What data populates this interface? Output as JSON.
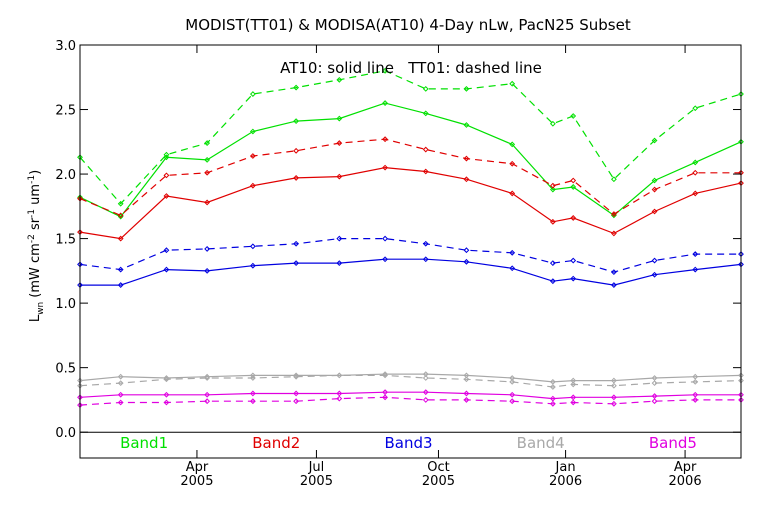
{
  "chart_data": {
    "type": "line",
    "title": "MODIST(TT01) & MODISA(AT10) 4-Day nLw, PacN25 Subset",
    "annotation": "AT10: solid line   TT01: dashed line",
    "ylabel": {
      "main": "L",
      "main_sub": "wn",
      "unit_open": " (mW cm",
      "unit_sup1": "-2",
      "unit_mid": " sr",
      "unit_sup2": "-1",
      "unit_um": " um",
      "unit_sup3": "-1",
      "unit_close": ")"
    },
    "ylim": [
      -0.2,
      3.0
    ],
    "yticks": [
      "0.0",
      "0.5",
      "1.0",
      "1.5",
      "2.0",
      "2.5",
      "3.0"
    ],
    "xlim": [
      0,
      26.0
    ],
    "xticks": [
      {
        "x": 4.6,
        "month": "Apr",
        "year": "2005"
      },
      {
        "x": 9.3,
        "month": "Jul",
        "year": "2005"
      },
      {
        "x": 14.1,
        "month": "Oct",
        "year": "2005"
      },
      {
        "x": 19.1,
        "month": "Jan",
        "year": "2006"
      },
      {
        "x": 23.8,
        "month": "Apr",
        "year": "2006"
      }
    ],
    "legend_placement": "bottom, inside plot",
    "series": [
      {
        "name": "Band1",
        "color": "#00e000",
        "style": "solid",
        "x": [
          0,
          1.6,
          3.4,
          5.0,
          6.8,
          8.5,
          10.2,
          12.0,
          13.6,
          15.2,
          17.0,
          18.6,
          19.4,
          21.0,
          22.6,
          24.2,
          26.0
        ],
        "y": [
          1.82,
          1.67,
          2.13,
          2.11,
          2.33,
          2.41,
          2.43,
          2.55,
          2.47,
          2.38,
          2.23,
          1.88,
          1.9,
          1.68,
          1.95,
          2.09,
          2.25
        ]
      },
      {
        "name": "Band1",
        "color": "#00e000",
        "style": "dashed",
        "x": [
          0,
          1.6,
          3.4,
          5.0,
          6.8,
          8.5,
          10.2,
          12.0,
          13.6,
          15.2,
          17.0,
          18.6,
          19.4,
          21.0,
          22.6,
          24.2,
          26.0
        ],
        "y": [
          2.13,
          1.77,
          2.15,
          2.24,
          2.62,
          2.67,
          2.73,
          2.8,
          2.66,
          2.66,
          2.7,
          2.39,
          2.45,
          1.96,
          2.26,
          2.51,
          2.62
        ]
      },
      {
        "name": "Band2",
        "color": "#e00000",
        "style": "solid",
        "x": [
          0,
          1.6,
          3.4,
          5.0,
          6.8,
          8.5,
          10.2,
          12.0,
          13.6,
          15.2,
          17.0,
          18.6,
          19.4,
          21.0,
          22.6,
          24.2,
          26.0
        ],
        "y": [
          1.55,
          1.5,
          1.83,
          1.78,
          1.91,
          1.97,
          1.98,
          2.05,
          2.02,
          1.96,
          1.85,
          1.63,
          1.66,
          1.54,
          1.71,
          1.85,
          1.93
        ]
      },
      {
        "name": "Band2",
        "color": "#e00000",
        "style": "dashed",
        "x": [
          0,
          1.6,
          3.4,
          5.0,
          6.8,
          8.5,
          10.2,
          12.0,
          13.6,
          15.2,
          17.0,
          18.6,
          19.4,
          21.0,
          22.6,
          24.2,
          26.0
        ],
        "y": [
          1.81,
          1.68,
          1.99,
          2.01,
          2.14,
          2.18,
          2.24,
          2.27,
          2.19,
          2.12,
          2.08,
          1.91,
          1.95,
          1.69,
          1.88,
          2.01,
          2.01
        ]
      },
      {
        "name": "Band3",
        "color": "#0000e0",
        "style": "solid",
        "x": [
          0,
          1.6,
          3.4,
          5.0,
          6.8,
          8.5,
          10.2,
          12.0,
          13.6,
          15.2,
          17.0,
          18.6,
          19.4,
          21.0,
          22.6,
          24.2,
          26.0
        ],
        "y": [
          1.14,
          1.14,
          1.26,
          1.25,
          1.29,
          1.31,
          1.31,
          1.34,
          1.34,
          1.32,
          1.27,
          1.17,
          1.19,
          1.14,
          1.22,
          1.26,
          1.3
        ]
      },
      {
        "name": "Band3",
        "color": "#0000e0",
        "style": "dashed",
        "x": [
          0,
          1.6,
          3.4,
          5.0,
          6.8,
          8.5,
          10.2,
          12.0,
          13.6,
          15.2,
          17.0,
          18.6,
          19.4,
          21.0,
          22.6,
          24.2,
          26.0
        ],
        "y": [
          1.3,
          1.26,
          1.41,
          1.42,
          1.44,
          1.46,
          1.5,
          1.5,
          1.46,
          1.41,
          1.39,
          1.31,
          1.33,
          1.24,
          1.33,
          1.38,
          1.38
        ]
      },
      {
        "name": "Band4",
        "color": "#a8a8a8",
        "style": "solid",
        "x": [
          0,
          1.6,
          3.4,
          5.0,
          6.8,
          8.5,
          10.2,
          12.0,
          13.6,
          15.2,
          17.0,
          18.6,
          19.4,
          21.0,
          22.6,
          24.2,
          26.0
        ],
        "y": [
          0.4,
          0.43,
          0.42,
          0.43,
          0.44,
          0.44,
          0.44,
          0.45,
          0.45,
          0.44,
          0.42,
          0.39,
          0.4,
          0.4,
          0.42,
          0.43,
          0.44
        ]
      },
      {
        "name": "Band4",
        "color": "#a8a8a8",
        "style": "dashed",
        "x": [
          0,
          1.6,
          3.4,
          5.0,
          6.8,
          8.5,
          10.2,
          12.0,
          13.6,
          15.2,
          17.0,
          18.6,
          19.4,
          21.0,
          22.6,
          24.2,
          26.0
        ],
        "y": [
          0.36,
          0.38,
          0.41,
          0.42,
          0.42,
          0.43,
          0.44,
          0.44,
          0.42,
          0.41,
          0.39,
          0.35,
          0.37,
          0.36,
          0.38,
          0.39,
          0.4
        ]
      },
      {
        "name": "Band5",
        "color": "#e000e0",
        "style": "solid",
        "x": [
          0,
          1.6,
          3.4,
          5.0,
          6.8,
          8.5,
          10.2,
          12.0,
          13.6,
          15.2,
          17.0,
          18.6,
          19.4,
          21.0,
          22.6,
          24.2,
          26.0
        ],
        "y": [
          0.27,
          0.29,
          0.29,
          0.29,
          0.3,
          0.3,
          0.3,
          0.31,
          0.31,
          0.3,
          0.29,
          0.26,
          0.27,
          0.27,
          0.28,
          0.29,
          0.29
        ]
      },
      {
        "name": "Band5",
        "color": "#e000e0",
        "style": "dashed",
        "x": [
          0,
          1.6,
          3.4,
          5.0,
          6.8,
          8.5,
          10.2,
          12.0,
          13.6,
          15.2,
          17.0,
          18.6,
          19.4,
          21.0,
          22.6,
          24.2,
          26.0
        ],
        "y": [
          0.21,
          0.23,
          0.23,
          0.24,
          0.24,
          0.24,
          0.26,
          0.27,
          0.25,
          0.25,
          0.24,
          0.22,
          0.23,
          0.22,
          0.24,
          0.25,
          0.25
        ]
      }
    ],
    "legend": [
      {
        "label": "Band1",
        "color": "#00e000"
      },
      {
        "label": "Band2",
        "color": "#e00000"
      },
      {
        "label": "Band3",
        "color": "#0000e0"
      },
      {
        "label": "Band4",
        "color": "#a8a8a8"
      },
      {
        "label": "Band5",
        "color": "#e000e0"
      }
    ]
  }
}
